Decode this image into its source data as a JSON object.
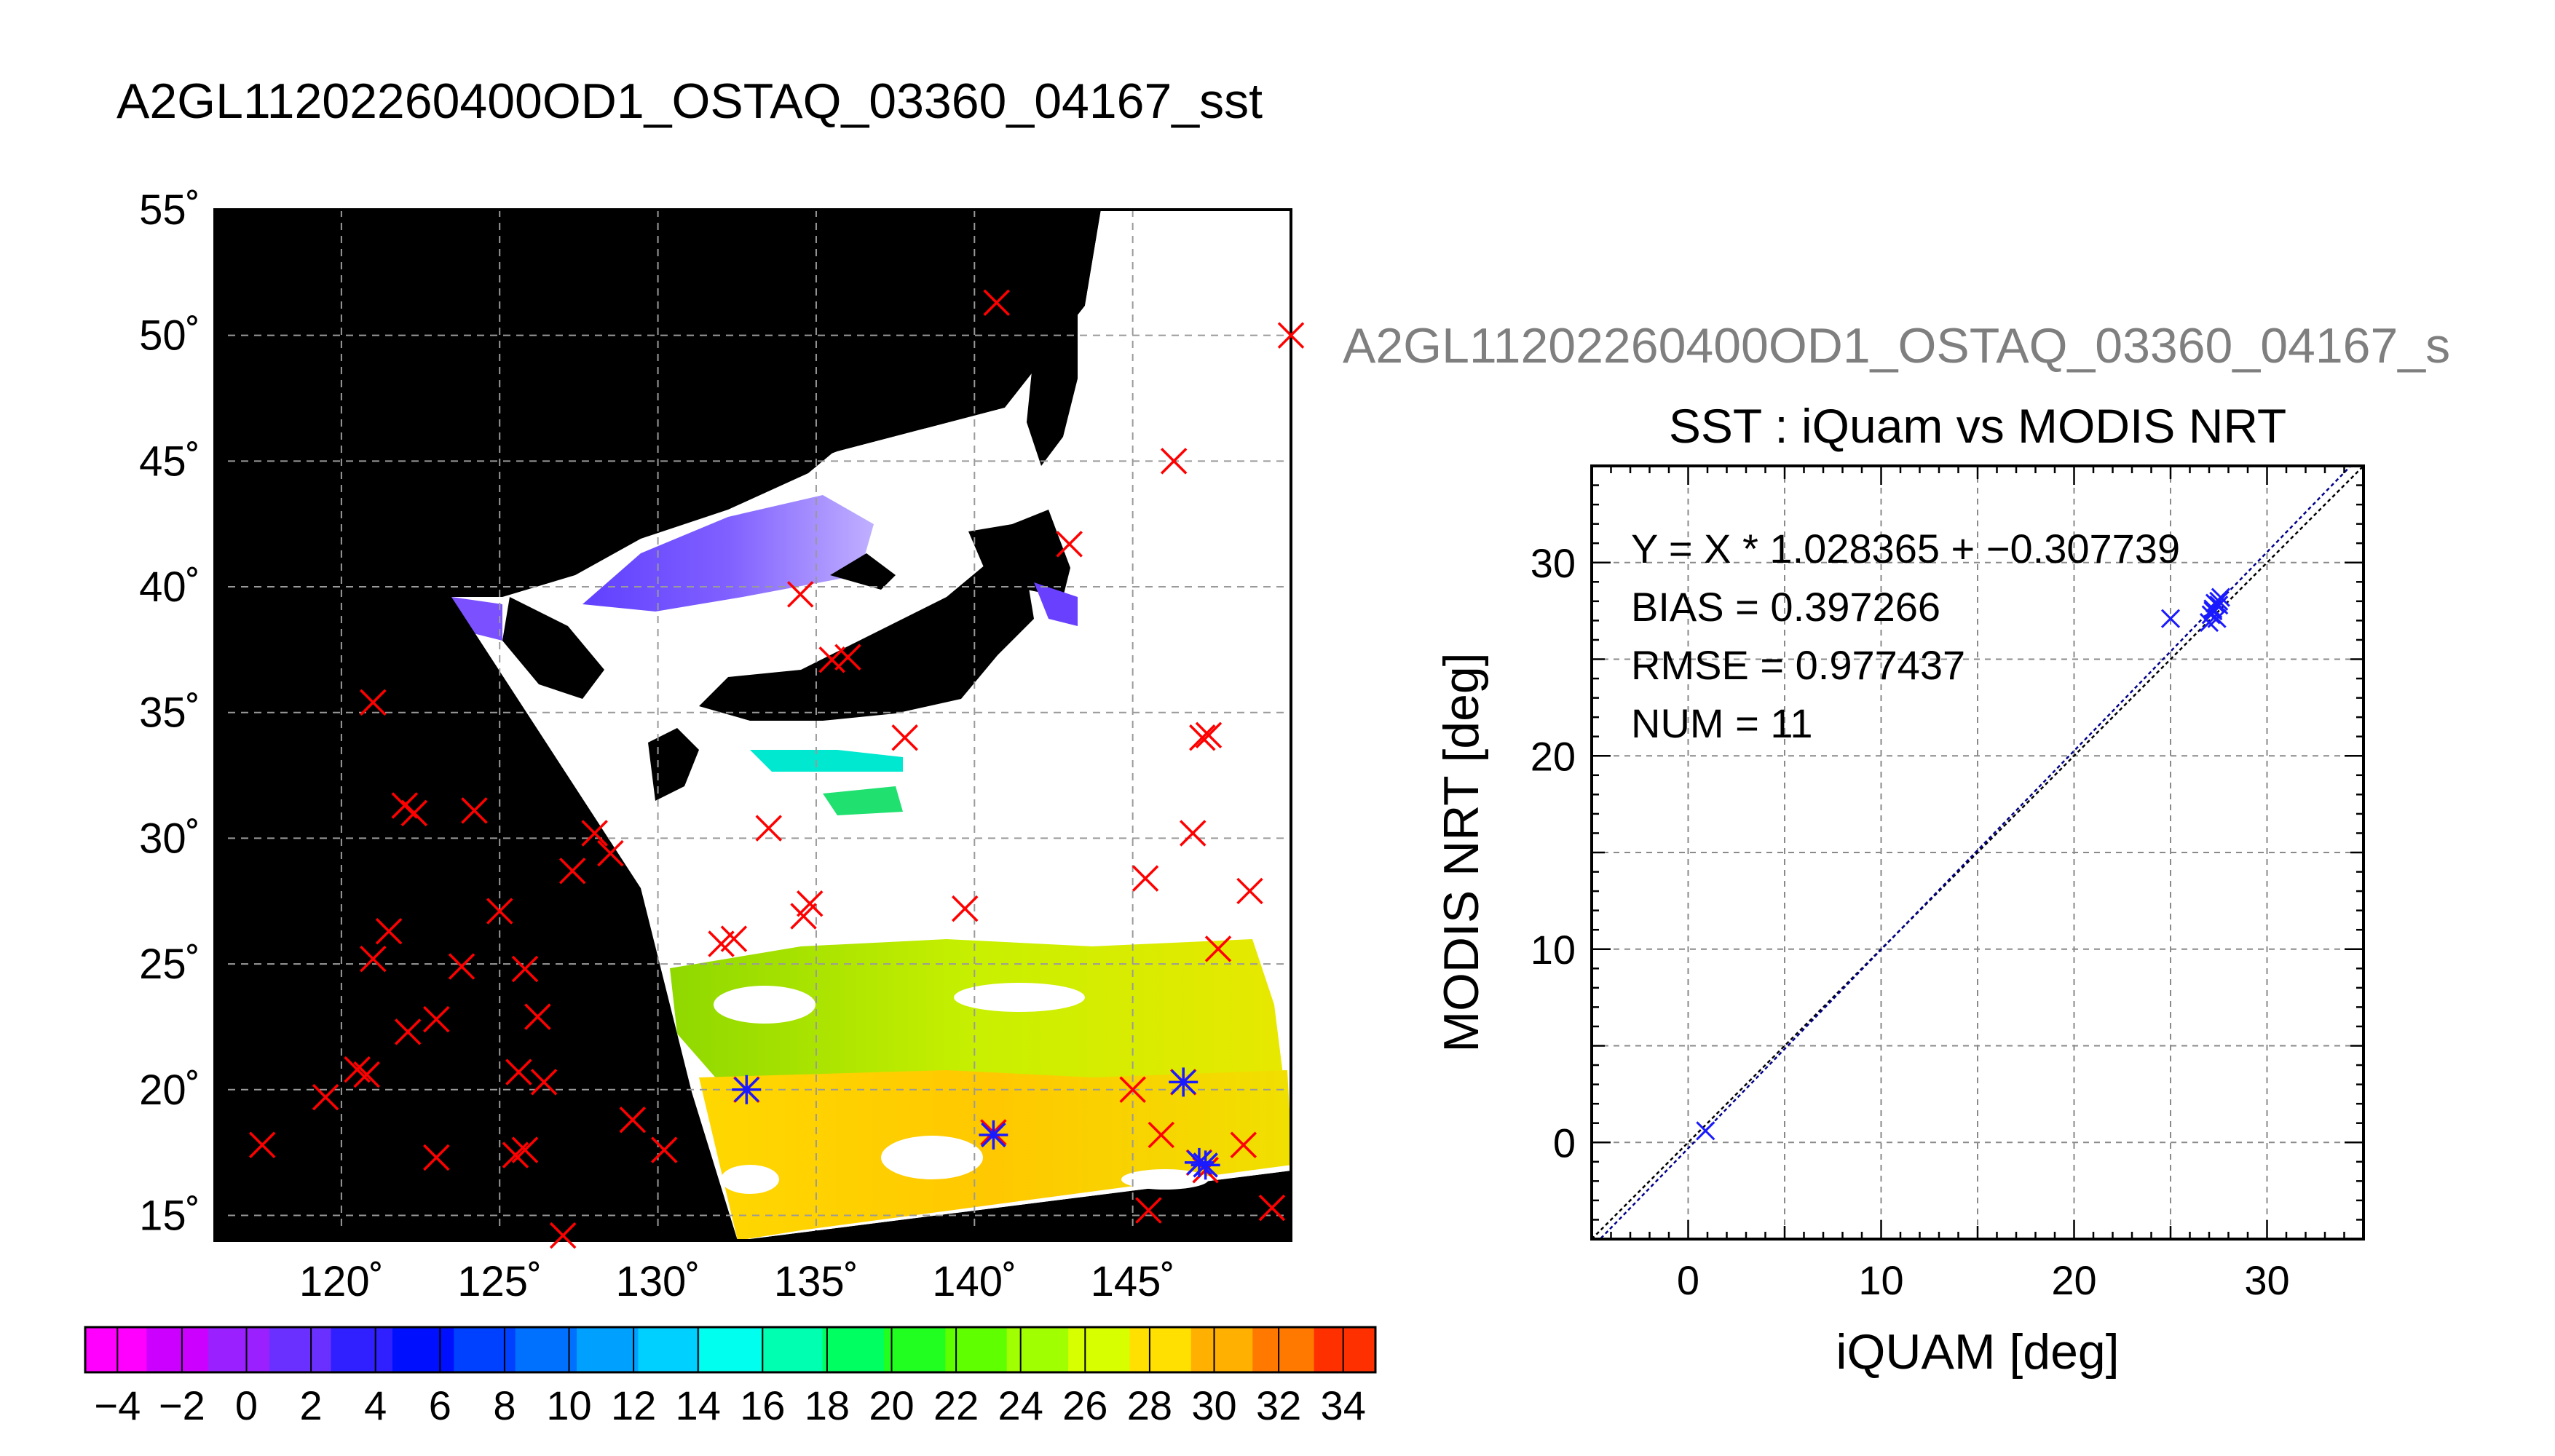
{
  "granule_title": "A2GL11202260400OD1_OSTAQ_03360_04167_sst",
  "map": {
    "lon_range": [
      116,
      150
    ],
    "lat_range": [
      14,
      55
    ],
    "lon_ticks": [
      120,
      125,
      130,
      135,
      140,
      145
    ],
    "lat_ticks": [
      15,
      20,
      25,
      30,
      35,
      40,
      45,
      50,
      55
    ],
    "lon_tick_labels": [
      "120˚",
      "125˚",
      "130˚",
      "135˚",
      "140˚",
      "145˚"
    ],
    "lat_tick_labels": [
      "15˚",
      "20˚",
      "25˚",
      "30˚",
      "35˚",
      "40˚",
      "45˚",
      "50˚",
      "55˚"
    ],
    "grid": true,
    "colors": {
      "land": "#000000",
      "cloud": "#ffffff",
      "marker_outside": "#ff0000",
      "marker_match": "#1a1aff"
    },
    "swath_corners_lonlat": [
      [
        143.3,
        55
      ],
      [
        150,
        14.8
      ],
      [
        132.5,
        14
      ],
      [
        123.8,
        38.7
      ]
    ],
    "buoy_markers": [
      [
        117.5,
        17.8
      ],
      [
        119.5,
        19.7
      ],
      [
        120.5,
        20.8
      ],
      [
        120.8,
        20.6
      ],
      [
        121.0,
        25.2
      ],
      [
        121.5,
        26.3
      ],
      [
        122.0,
        31.3
      ],
      [
        122.3,
        31.0
      ],
      [
        122.1,
        22.3
      ],
      [
        123.0,
        17.3
      ],
      [
        123.0,
        22.8
      ],
      [
        123.8,
        24.9
      ],
      [
        124.2,
        31.1
      ],
      [
        125.0,
        27.1
      ],
      [
        125.5,
        17.4
      ],
      [
        125.6,
        20.7
      ],
      [
        125.8,
        17.6
      ],
      [
        125.8,
        24.8
      ],
      [
        126.2,
        22.9
      ],
      [
        126.4,
        20.3
      ],
      [
        127.0,
        14.2
      ],
      [
        127.3,
        28.7
      ],
      [
        128.0,
        30.2
      ],
      [
        128.5,
        29.4
      ],
      [
        129.2,
        18.8
      ],
      [
        130.2,
        17.6
      ],
      [
        121.0,
        35.4
      ],
      [
        132.0,
        25.8
      ],
      [
        132.4,
        26.0
      ],
      [
        132.8,
        20.0
      ],
      [
        133.5,
        30.4
      ],
      [
        134.6,
        26.9
      ],
      [
        134.8,
        27.4
      ],
      [
        134.5,
        39.7
      ],
      [
        135.5,
        37.1
      ],
      [
        136.0,
        37.2
      ],
      [
        137.8,
        34.0
      ],
      [
        139.7,
        27.2
      ],
      [
        140.7,
        51.3
      ],
      [
        140.6,
        18.3
      ],
      [
        143.0,
        41.7
      ],
      [
        145.4,
        28.4
      ],
      [
        145.0,
        20.0
      ],
      [
        145.9,
        18.2
      ],
      [
        146.3,
        45.0
      ],
      [
        146.9,
        30.2
      ],
      [
        147.2,
        34.0
      ],
      [
        147.4,
        34.1
      ],
      [
        147.7,
        25.6
      ],
      [
        146.6,
        20.3
      ],
      [
        147.1,
        17.1
      ],
      [
        147.3,
        16.8
      ],
      [
        145.5,
        15.2
      ],
      [
        148.5,
        17.8
      ],
      [
        148.7,
        27.9
      ],
      [
        149.4,
        15.3
      ],
      [
        150.0,
        50.0
      ]
    ],
    "matched_markers": [
      [
        132.8,
        20.0
      ],
      [
        140.6,
        18.2
      ],
      [
        146.6,
        20.3
      ],
      [
        147.1,
        17.1
      ],
      [
        147.3,
        17.0
      ]
    ]
  },
  "colorbar": {
    "min": -5,
    "max": 35,
    "tick_labels": [
      "−4",
      "−2",
      "0",
      "2",
      "4",
      "6",
      "8",
      "10",
      "12",
      "14",
      "16",
      "18",
      "20",
      "22",
      "24",
      "26",
      "28",
      "30",
      "32",
      "34"
    ],
    "tick_values": [
      -4,
      -2,
      0,
      2,
      4,
      6,
      8,
      10,
      12,
      14,
      16,
      18,
      20,
      22,
      24,
      26,
      28,
      30,
      32,
      34
    ]
  },
  "scatter": {
    "granule_label": "A2GL11202260400OD1_OSTAQ_03360_04167_s",
    "title": "SST : iQuam vs MODIS NRT",
    "xlabel": "iQUAM [deg]",
    "ylabel": "MODIS NRT [deg]",
    "stats": {
      "fit": "Y = X * 1.028365 + −0.307739",
      "bias": "BIAS = 0.397266",
      "rmse": "RMSE = 0.977437",
      "num": "NUM = 11"
    }
  },
  "chart_data": [
    {
      "type": "scatter",
      "title": "SST : iQuam vs MODIS NRT",
      "xlabel": "iQUAM [deg]",
      "ylabel": "MODIS NRT [deg]",
      "xlim": [
        -5,
        35
      ],
      "ylim": [
        -5,
        35
      ],
      "xticks": [
        0,
        10,
        20,
        30
      ],
      "yticks": [
        0,
        10,
        20,
        30
      ],
      "xtick_labels": [
        "0",
        "10",
        "20",
        "30"
      ],
      "ytick_labels": [
        "0",
        "10",
        "20",
        "30"
      ],
      "grid": true,
      "marker_color": "#1a1aff",
      "points": [
        [
          0.9,
          0.6
        ],
        [
          25.0,
          27.1
        ],
        [
          27.0,
          26.9
        ],
        [
          27.1,
          27.3
        ],
        [
          27.2,
          27.6
        ],
        [
          27.3,
          27.9
        ],
        [
          27.5,
          28.0
        ],
        [
          27.6,
          28.2
        ],
        [
          27.4,
          27.1
        ],
        [
          27.2,
          27.5
        ],
        [
          27.5,
          27.8
        ]
      ],
      "fit": {
        "slope": 1.028365,
        "intercept": -0.307739,
        "color": "#00008b"
      },
      "one_to_one_line": true
    }
  ]
}
